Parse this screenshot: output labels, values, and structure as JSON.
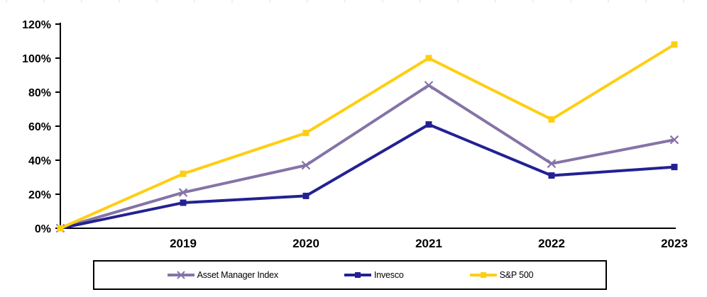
{
  "chart_data": {
    "type": "line",
    "title": "",
    "x_labels": [
      "",
      "2019",
      "2020",
      "2021",
      "2022",
      "2023"
    ],
    "y_axis": {
      "min": 0,
      "max": 120,
      "step": 20,
      "tick_labels": [
        "0%",
        "20%",
        "40%",
        "60%",
        "80%",
        "100%",
        "120%"
      ],
      "format": "percent"
    },
    "series": [
      {
        "name": "Asset Manager Index",
        "color": "#8573A7",
        "marker": "x",
        "values": [
          0,
          21,
          37,
          84,
          38,
          52
        ]
      },
      {
        "name": "Invesco",
        "color": "#232192",
        "marker": "square",
        "values": [
          0,
          15,
          19,
          61,
          31,
          36
        ]
      },
      {
        "name": "S&P 500",
        "color": "#FFCE12",
        "marker": "square",
        "values": [
          0,
          32,
          56,
          100,
          64,
          108
        ]
      }
    ],
    "grid": false,
    "legend": {
      "position": "bottom",
      "border_color": "#000000"
    },
    "axis_color": "#000000",
    "background": "#FFFFFF"
  }
}
